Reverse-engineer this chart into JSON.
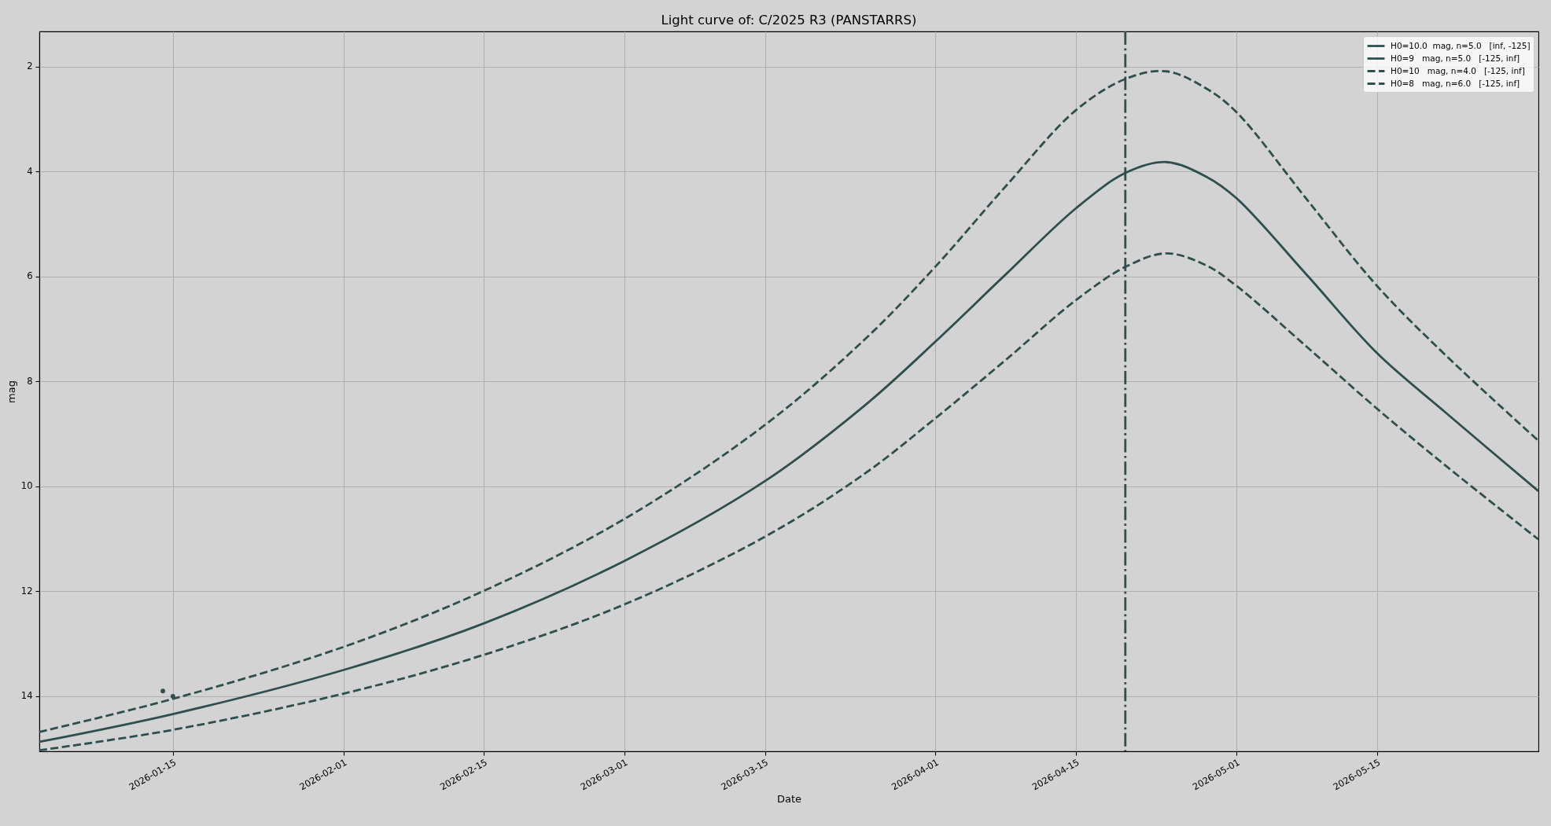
{
  "chart_data": {
    "type": "line",
    "title": "Light curve of: C/2025 R3 (PANSTARRS)",
    "xlabel": "Date",
    "ylabel": "mag",
    "x": [
      "2026-01-01T16:30",
      "2026-01-15",
      "2026-02-01",
      "2026-02-15",
      "2026-03-01",
      "2026-03-15",
      "2026-03-25",
      "2026-04-01",
      "2026-04-08",
      "2026-04-15",
      "2026-04-20",
      "2026-04-24",
      "2026-04-28",
      "2026-05-01",
      "2026-05-08",
      "2026-05-15",
      "2026-05-22",
      "2026-05-31T02:00"
    ],
    "series": [
      {
        "name": "H0=10.0  mag, n=5.0   [inf, -125]",
        "color": "#2f4f4f",
        "line_style": "solid",
        "values": [
          null,
          null,
          null,
          null,
          null,
          null,
          null,
          null,
          null,
          null,
          null,
          null,
          null,
          null,
          null,
          null,
          null,
          null
        ]
      },
      {
        "name": "H0=9   mag, n=5.0   [-125, inf]",
        "color": "#2f4f4f",
        "line_style": "solid",
        "values": [
          14.87,
          14.34,
          13.5,
          12.61,
          11.42,
          9.9,
          8.45,
          7.24,
          5.96,
          4.7,
          4.02,
          3.82,
          4.1,
          4.51,
          5.97,
          7.46,
          8.62,
          10.09
        ]
      },
      {
        "name": "H0=10   mag, n=4.0   [-125, inf]",
        "color": "#2f4f4f",
        "line_style": "dashed",
        "values": [
          15.03,
          14.64,
          13.95,
          13.21,
          12.25,
          10.96,
          9.75,
          8.7,
          7.59,
          6.45,
          5.81,
          5.56,
          5.79,
          6.18,
          7.34,
          8.52,
          9.63,
          11.01
        ]
      },
      {
        "name": "H0=8   mag, n=6.0   [-125, inf]",
        "color": "#2f4f4f",
        "line_style": "dashed",
        "values": [
          14.68,
          14.05,
          13.06,
          11.99,
          10.62,
          8.83,
          7.19,
          5.81,
          4.28,
          2.83,
          2.23,
          2.09,
          2.42,
          2.87,
          4.53,
          6.18,
          7.53,
          9.13
        ]
      },
      {
        "type": "scatter",
        "x": [
          "2026-01-14",
          "2026-01-15"
        ],
        "values": [
          13.9,
          14
        ],
        "color": "#2f4f4f",
        "marker": "circle"
      }
    ],
    "xlim": [
      "2026-01-01T16:30",
      "2026-05-31T02:00"
    ],
    "xticks": [
      "2026-01-15",
      "2026-02-01",
      "2026-02-15",
      "2026-03-01",
      "2026-03-15",
      "2026-04-01",
      "2026-04-15",
      "2026-05-01",
      "2026-05-15"
    ],
    "ylim": [
      15.05,
      1.33
    ],
    "yticks": [
      2,
      4,
      6,
      8,
      10,
      12,
      14
    ],
    "ref_lines": [
      {
        "axis": "x",
        "value": "2026-04-19T22:00",
        "color": "#2f4f4f",
        "line_style": "dashdot"
      }
    ],
    "grid": true,
    "legend": "top right"
  }
}
